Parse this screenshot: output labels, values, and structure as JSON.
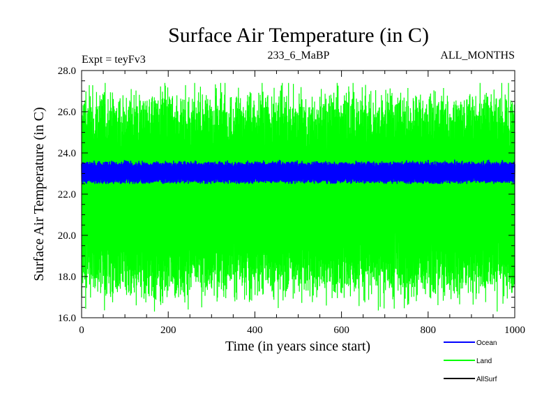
{
  "chart_data": {
    "type": "line",
    "title": "Surface Air Temperature (in C)",
    "subtitle_left": "Expt = teyFv3",
    "subtitle_center": "233_6_MaBP",
    "subtitle_right": "ALL_MONTHS",
    "xlabel": "Time (in years since start)",
    "ylabel": "Surface Air Temperature (in C)",
    "xlim": [
      0,
      1000
    ],
    "ylim": [
      16.0,
      28.0
    ],
    "xticks": [
      0,
      200,
      400,
      600,
      800,
      1000
    ],
    "xtick_labels": [
      "0",
      "200",
      "400",
      "600",
      "800",
      "1000"
    ],
    "yticks": [
      16.0,
      18.0,
      20.0,
      22.0,
      24.0,
      26.0,
      28.0
    ],
    "ytick_labels": [
      "16.0",
      "18.0",
      "20.0",
      "22.0",
      "24.0",
      "26.0",
      "28.0"
    ],
    "legend_position": "bottom-right",
    "series": [
      {
        "name": "Ocean",
        "color": "#0000ff",
        "mean": 23.05,
        "range": [
          22.5,
          23.7
        ],
        "description": "monthly values oscillating tightly around the mean"
      },
      {
        "name": "Land",
        "color": "#00ff00",
        "mean": 22.0,
        "range": [
          16.3,
          27.4
        ],
        "description": "monthly values oscillating widely around the mean"
      },
      {
        "name": "AllSurf",
        "color": "#000000"
      }
    ]
  }
}
